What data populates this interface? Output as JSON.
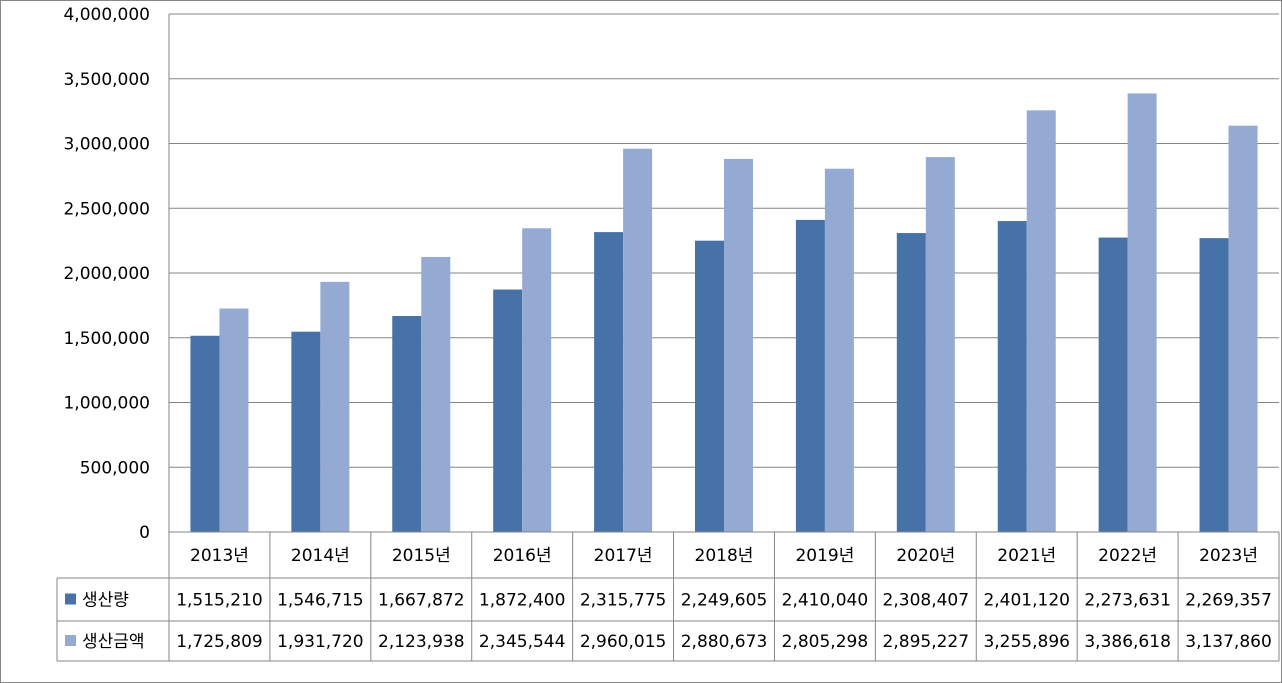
{
  "chart_data": {
    "type": "bar",
    "categories": [
      "2013년",
      "2014년",
      "2015년",
      "2016년",
      "2017년",
      "2018년",
      "2019년",
      "2020년",
      "2021년",
      "2022년",
      "2023년"
    ],
    "series": [
      {
        "name": "생산량",
        "color": "#4672A8",
        "values": [
          1515210,
          1546715,
          1667872,
          1872400,
          2315775,
          2249605,
          2410040,
          2308407,
          2401120,
          2273631,
          2269357
        ],
        "labels": [
          "1,515,210",
          "1,546,715",
          "1,667,872",
          "1,872,400",
          "2,315,775",
          "2,249,605",
          "2,410,040",
          "2,308,407",
          "2,401,120",
          "2,273,631",
          "2,269,357"
        ]
      },
      {
        "name": "생산금액",
        "color": "#95AAD3",
        "values": [
          1725809,
          1931720,
          2123938,
          2345544,
          2960015,
          2880673,
          2805298,
          2895227,
          3255896,
          3386618,
          3137860
        ],
        "labels": [
          "1,725,809",
          "1,931,720",
          "2,123,938",
          "2,345,544",
          "2,960,015",
          "2,880,673",
          "2,805,298",
          "2,895,227",
          "3,255,896",
          "3,386,618",
          "3,137,860"
        ]
      }
    ],
    "ylim": [
      0,
      4000000
    ],
    "yticks": [
      "0",
      "500,000",
      "1,000,000",
      "1,500,000",
      "2,000,000",
      "2,500,000",
      "3,000,000",
      "3,500,000",
      "4,000,000"
    ],
    "grid": true,
    "legend": "data-table"
  }
}
